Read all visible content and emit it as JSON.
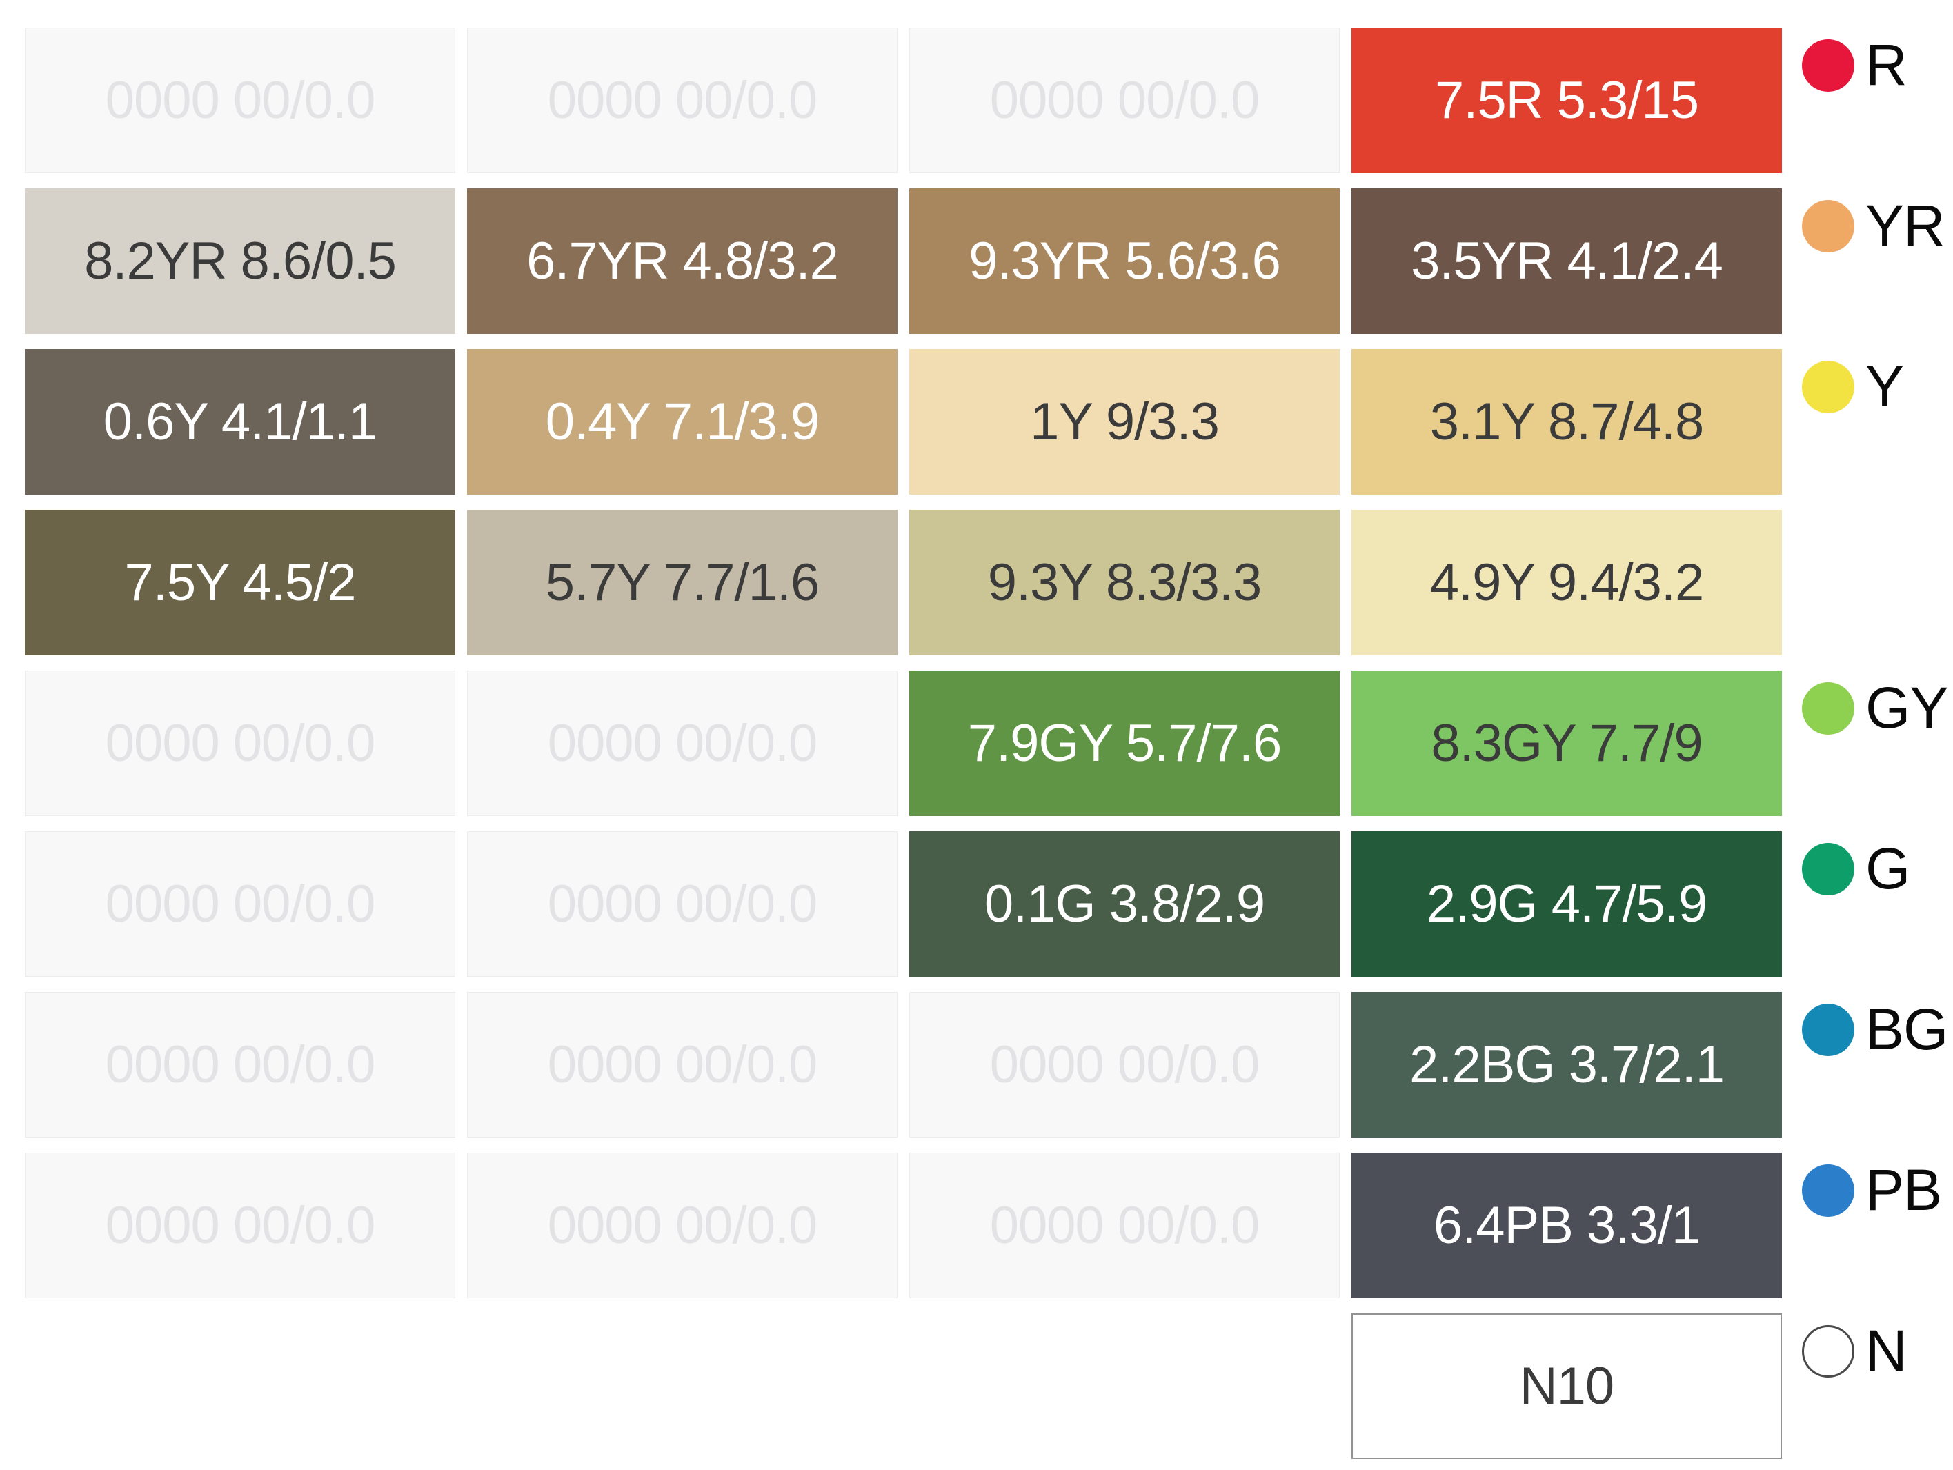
{
  "chart_data": {
    "type": "table",
    "description": "Munsell color swatch grid (4 columns x 9 rows) with hue-family legend",
    "columns": 4,
    "rows": 9,
    "placeholder_label": "0000 00/0.0",
    "swatches": [
      {
        "row": 1,
        "col": 4,
        "label": "7.5R 5.3/15",
        "bg": "#e2402f",
        "text": "#ffffff",
        "hue": "R"
      },
      {
        "row": 2,
        "col": 1,
        "label": "8.2YR 8.6/0.5",
        "bg": "#d6d1c9",
        "text": "#3b3b3b",
        "hue": "YR"
      },
      {
        "row": 2,
        "col": 2,
        "label": "6.7YR 4.8/3.2",
        "bg": "#8a6f57",
        "text": "#ffffff",
        "hue": "YR"
      },
      {
        "row": 2,
        "col": 3,
        "label": "9.3YR 5.6/3.6",
        "bg": "#a8875f",
        "text": "#ffffff",
        "hue": "YR"
      },
      {
        "row": 2,
        "col": 4,
        "label": "3.5YR 4.1/2.4",
        "bg": "#6d5649",
        "text": "#ffffff",
        "hue": "YR"
      },
      {
        "row": 3,
        "col": 1,
        "label": "0.6Y 4.1/1.1",
        "bg": "#6d6459",
        "text": "#ffffff",
        "hue": "Y"
      },
      {
        "row": 3,
        "col": 2,
        "label": "0.4Y 7.1/3.9",
        "bg": "#c7a97c",
        "text": "#ffffff",
        "hue": "Y"
      },
      {
        "row": 3,
        "col": 3,
        "label": "1Y 9/3.3",
        "bg": "#f2dcb2",
        "text": "#3b3b3b",
        "hue": "Y"
      },
      {
        "row": 3,
        "col": 4,
        "label": "3.1Y 8.7/4.8",
        "bg": "#e9cd8b",
        "text": "#3b3b3b",
        "hue": "Y"
      },
      {
        "row": 4,
        "col": 1,
        "label": "7.5Y 4.5/2",
        "bg": "#6b6448",
        "text": "#ffffff",
        "hue": "Y"
      },
      {
        "row": 4,
        "col": 2,
        "label": "5.7Y 7.7/1.6",
        "bg": "#c3bba7",
        "text": "#3b3b3b",
        "hue": "Y"
      },
      {
        "row": 4,
        "col": 3,
        "label": "9.3Y 8.3/3.3",
        "bg": "#cbc494",
        "text": "#3b3b3b",
        "hue": "Y"
      },
      {
        "row": 4,
        "col": 4,
        "label": "4.9Y 9.4/3.2",
        "bg": "#f1e6b6",
        "text": "#3b3b3b",
        "hue": "Y"
      },
      {
        "row": 5,
        "col": 3,
        "label": "7.9GY 5.7/7.6",
        "bg": "#5f9544",
        "text": "#ffffff",
        "hue": "GY"
      },
      {
        "row": 5,
        "col": 4,
        "label": "8.3GY 7.7/9",
        "bg": "#7ec663",
        "text": "#3b3b3b",
        "hue": "GY"
      },
      {
        "row": 6,
        "col": 3,
        "label": "0.1G 3.8/2.9",
        "bg": "#485e48",
        "text": "#ffffff",
        "hue": "G"
      },
      {
        "row": 6,
        "col": 4,
        "label": "2.9G 4.7/5.9",
        "bg": "#235a3a",
        "text": "#ffffff",
        "hue": "G"
      },
      {
        "row": 7,
        "col": 4,
        "label": "2.2BG 3.7/2.1",
        "bg": "#4a6155",
        "text": "#ffffff",
        "hue": "BG"
      },
      {
        "row": 8,
        "col": 4,
        "label": "6.4PB 3.3/1",
        "bg": "#4c4f58",
        "text": "#ffffff",
        "hue": "PB"
      },
      {
        "row": 9,
        "col": 4,
        "label": "N10",
        "bg": "#ffffff",
        "text": "#3b3b3b",
        "hue": "N",
        "outlined": true
      }
    ],
    "placeholders": [
      {
        "row": 1,
        "col": 1
      },
      {
        "row": 1,
        "col": 2
      },
      {
        "row": 1,
        "col": 3
      },
      {
        "row": 5,
        "col": 1
      },
      {
        "row": 5,
        "col": 2
      },
      {
        "row": 6,
        "col": 1
      },
      {
        "row": 6,
        "col": 2
      },
      {
        "row": 7,
        "col": 1
      },
      {
        "row": 7,
        "col": 2
      },
      {
        "row": 7,
        "col": 3
      },
      {
        "row": 8,
        "col": 1
      },
      {
        "row": 8,
        "col": 2
      },
      {
        "row": 8,
        "col": 3
      }
    ],
    "legend": [
      {
        "label": "R",
        "color": "#e6173a",
        "row": 1,
        "filled": true
      },
      {
        "label": "YR",
        "color": "#f0a965",
        "row": 2,
        "filled": true
      },
      {
        "label": "Y",
        "color": "#f2e242",
        "row": 3,
        "filled": true
      },
      {
        "label": "GY",
        "color": "#8ed04f",
        "row": 5,
        "filled": true
      },
      {
        "label": "G",
        "color": "#0d9e6a",
        "row": 6,
        "filled": true
      },
      {
        "label": "BG",
        "color": "#1489b6",
        "row": 7,
        "filled": true
      },
      {
        "label": "PB",
        "color": "#2b7ec9",
        "row": 8,
        "filled": true
      },
      {
        "label": "N",
        "color": "#ffffff",
        "row": 9,
        "filled": false
      }
    ],
    "colors": {
      "page_bg": "#ffffff",
      "placeholder_bg": "#f8f8f9",
      "placeholder_text": "#e3e3e6",
      "placeholder_border": "#ececef",
      "legend_text": "#0a0a0a",
      "n_dot_outline": "#4a4a4a",
      "n_cell_border": "#929292"
    }
  }
}
